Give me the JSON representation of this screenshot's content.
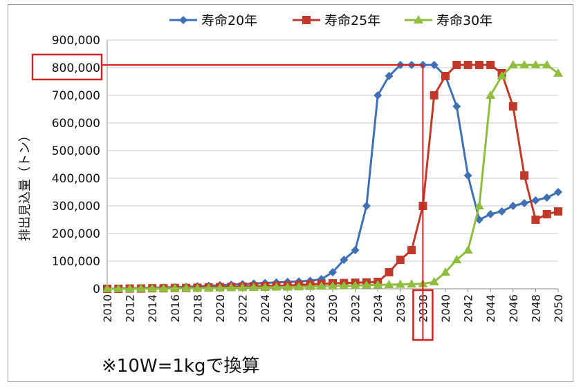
{
  "chart_data": {
    "type": "line",
    "title": "",
    "xlabel": "",
    "ylabel": "排出見込量（トン）",
    "x": [
      2010,
      2011,
      2012,
      2013,
      2014,
      2015,
      2016,
      2017,
      2018,
      2019,
      2020,
      2021,
      2022,
      2023,
      2024,
      2025,
      2026,
      2027,
      2028,
      2029,
      2030,
      2031,
      2032,
      2033,
      2034,
      2035,
      2036,
      2037,
      2038,
      2039,
      2040,
      2041,
      2042,
      2043,
      2044,
      2045,
      2046,
      2047,
      2048,
      2049,
      2050
    ],
    "x_tick_labels": [
      "2010",
      "2012",
      "2014",
      "2016",
      "2018",
      "2020",
      "2022",
      "2024",
      "2026",
      "2028",
      "2030",
      "2032",
      "2034",
      "2036",
      "2038",
      "2040",
      "2042",
      "2044",
      "2046",
      "2048",
      "2050"
    ],
    "y_tick_labels": [
      "0",
      "100,000",
      "200,000",
      "300,000",
      "400,000",
      "500,000",
      "600,000",
      "700,000",
      "800,000",
      "900,000"
    ],
    "ylim": [
      0,
      900000
    ],
    "grid": "horizontal",
    "legend_position": "top",
    "series": [
      {
        "name": "寿命20年",
        "color": "#3f6fb5",
        "marker": "diamond",
        "values": [
          0,
          1000,
          2000,
          3000,
          4000,
          5000,
          6000,
          7000,
          9000,
          11000,
          13000,
          15000,
          17000,
          19000,
          21000,
          23000,
          25000,
          27000,
          29000,
          35000,
          60000,
          105000,
          140000,
          300000,
          700000,
          770000,
          810000,
          810000,
          810000,
          810000,
          770000,
          660000,
          410000,
          250000,
          270000,
          280000,
          300000,
          310000,
          320000,
          330000,
          350000
        ]
      },
      {
        "name": "寿命25年",
        "color": "#c0392b",
        "marker": "square",
        "values": [
          0,
          0,
          1000,
          1000,
          2000,
          2000,
          3000,
          3000,
          4000,
          5000,
          6000,
          7000,
          8000,
          9000,
          10000,
          11000,
          12000,
          14000,
          16000,
          18000,
          20000,
          21000,
          22000,
          23000,
          25000,
          60000,
          105000,
          140000,
          300000,
          700000,
          770000,
          810000,
          810000,
          810000,
          810000,
          780000,
          660000,
          410000,
          250000,
          270000,
          280000
        ]
      },
      {
        "name": "寿命30年",
        "color": "#8fbe3f",
        "marker": "triangle",
        "values": [
          0,
          0,
          0,
          1000,
          1000,
          1000,
          2000,
          2000,
          2000,
          3000,
          3000,
          4000,
          4000,
          5000,
          5000,
          6000,
          6000,
          7000,
          8000,
          9000,
          10000,
          11000,
          12000,
          13000,
          14000,
          15000,
          16000,
          17000,
          18000,
          25000,
          60000,
          105000,
          140000,
          300000,
          700000,
          770000,
          810000,
          810000,
          810000,
          810000,
          780000
        ]
      }
    ],
    "highlight": {
      "y_label": "800,000",
      "x_label": "2038",
      "y_value": 810000,
      "x_value": 2038,
      "color": "#d22222"
    },
    "note": "※10W=1kgで換算"
  }
}
